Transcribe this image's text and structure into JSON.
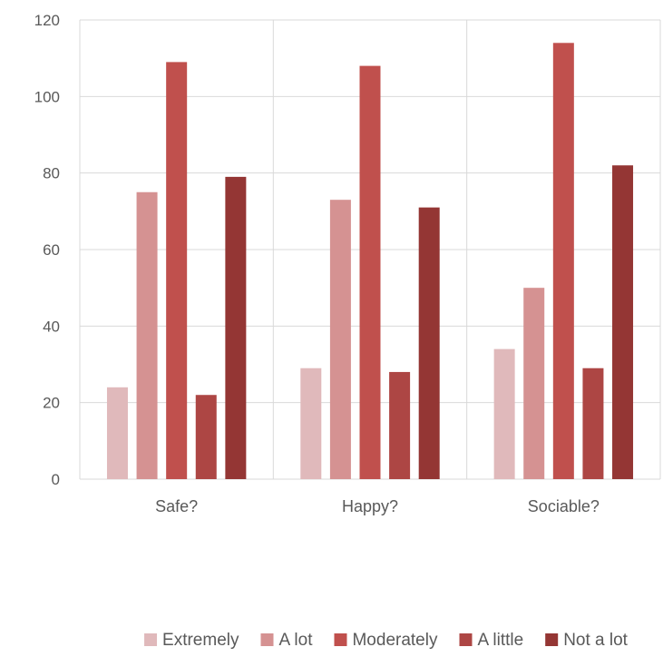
{
  "chart_data": {
    "type": "bar",
    "categories": [
      "Safe?",
      "Happy?",
      "Sociable?"
    ],
    "series": [
      {
        "name": "Extremely",
        "color": "#e0b9bb",
        "values": [
          24,
          29,
          34
        ]
      },
      {
        "name": "A lot",
        "color": "#d59292",
        "values": [
          75,
          73,
          50
        ]
      },
      {
        "name": "Moderately",
        "color": "#c0504d",
        "values": [
          109,
          108,
          114
        ]
      },
      {
        "name": "A little",
        "color": "#ad4644",
        "values": [
          22,
          28,
          29
        ]
      },
      {
        "name": "Not a lot",
        "color": "#943634",
        "values": [
          79,
          71,
          82
        ]
      }
    ],
    "ylim": [
      0,
      120
    ],
    "yticks": [
      0,
      20,
      40,
      60,
      80,
      100,
      120
    ],
    "legend_position": "bottom",
    "grid": true
  }
}
